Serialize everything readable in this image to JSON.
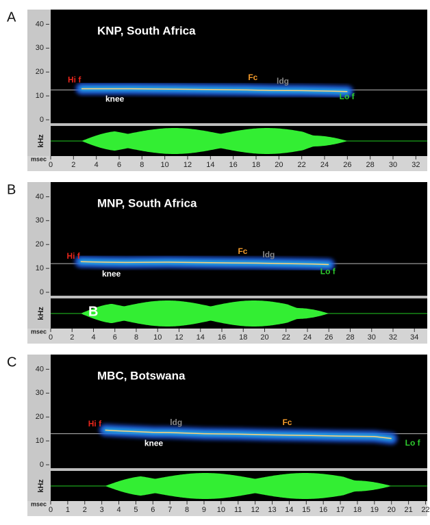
{
  "chart_data": [
    {
      "type": "spectrogram",
      "panel": "A",
      "title": "KNP, South Africa",
      "y_label": "kHz",
      "x_label": "msec",
      "ylim": [
        0,
        45
      ],
      "yticks": [
        0,
        10,
        20,
        30,
        40
      ],
      "xlim": [
        0,
        33
      ],
      "xticks": [
        0,
        2,
        4,
        6,
        8,
        10,
        12,
        14,
        16,
        18,
        20,
        22,
        24,
        26,
        28,
        30,
        32
      ],
      "reference_line": 12.5,
      "series": [
        {
          "color": "#ffd27a",
          "x": [
            2.7,
            5,
            7,
            11,
            15,
            17.2,
            19.3,
            22,
            24.5,
            26
          ],
          "values": [
            13,
            13,
            13,
            12.8,
            12.6,
            12.5,
            12.3,
            12.2,
            12,
            11.8
          ]
        }
      ],
      "annotations": [
        {
          "text": "Hi f",
          "x": 1.5,
          "y": 16.5,
          "color": "#e8261c"
        },
        {
          "text": "knee",
          "x": 4.8,
          "y": 8.5,
          "color": "#ffffff"
        },
        {
          "text": "Fc",
          "x": 17.3,
          "y": 17.5,
          "color": "#f39a2a"
        },
        {
          "text": "ldg",
          "x": 19.8,
          "y": 16,
          "color": "#888888"
        },
        {
          "text": "Lo f",
          "x": 25.3,
          "y": 9.5,
          "color": "#2ecc2e"
        }
      ]
    },
    {
      "type": "spectrogram",
      "panel": "B",
      "title": "MNP, South Africa",
      "y_label": "kHz",
      "x_label": "msec",
      "ylim": [
        0,
        45
      ],
      "yticks": [
        0,
        10,
        20,
        30,
        40
      ],
      "xlim": [
        0,
        35.2
      ],
      "xticks": [
        0,
        2,
        4,
        6,
        8,
        10,
        12,
        14,
        16,
        18,
        20,
        22,
        24,
        26,
        28,
        30,
        32,
        34
      ],
      "reference_line": 12,
      "series": [
        {
          "color": "#ffd27a",
          "x": [
            2.8,
            5,
            7,
            11,
            15,
            17,
            19.2,
            22,
            24.5,
            26
          ],
          "values": [
            12.8,
            12.6,
            12.5,
            12.6,
            12.4,
            12.3,
            12.2,
            12,
            11.8,
            11.6
          ]
        }
      ],
      "annotations": [
        {
          "text": "Hi f",
          "x": 1.5,
          "y": 15,
          "color": "#e8261c"
        },
        {
          "text": "knee",
          "x": 4.8,
          "y": 7.5,
          "color": "#ffffff"
        },
        {
          "text": "Fc",
          "x": 17.5,
          "y": 17,
          "color": "#f39a2a"
        },
        {
          "text": "ldg",
          "x": 19.8,
          "y": 15.5,
          "color": "#888888"
        },
        {
          "text": "Lo f",
          "x": 25.2,
          "y": 8.5,
          "color": "#2ecc2e"
        }
      ],
      "waveform_label": "B"
    },
    {
      "type": "spectrogram",
      "panel": "C",
      "title": "MBC, Botswana",
      "y_label": "kHz",
      "x_label": "msec",
      "ylim": [
        0,
        45
      ],
      "yticks": [
        0,
        10,
        20,
        30,
        40
      ],
      "xlim": [
        0,
        22.1
      ],
      "xticks": [
        0,
        1,
        2,
        3,
        4,
        5,
        6,
        7,
        8,
        9,
        10,
        11,
        12,
        13,
        14,
        15,
        16,
        17,
        18,
        19,
        20,
        21,
        22
      ],
      "reference_line": 13,
      "series": [
        {
          "color": "#ffd27a",
          "x": [
            3.2,
            4,
            6,
            7,
            9,
            11,
            13,
            15,
            17,
            19,
            20
          ],
          "values": [
            14.5,
            14.2,
            13.6,
            13.5,
            13,
            12.8,
            12.5,
            12.3,
            12,
            11.8,
            11
          ]
        }
      ],
      "annotations": [
        {
          "text": "Hi f",
          "x": 2.2,
          "y": 17,
          "color": "#e8261c"
        },
        {
          "text": "knee",
          "x": 5.5,
          "y": 8.8,
          "color": "#ffffff"
        },
        {
          "text": "ldg",
          "x": 7,
          "y": 17.5,
          "color": "#888888"
        },
        {
          "text": "Fc",
          "x": 13.6,
          "y": 17.5,
          "color": "#f39a2a"
        },
        {
          "text": "Lo f",
          "x": 20.8,
          "y": 9,
          "color": "#2ecc2e"
        }
      ]
    }
  ]
}
